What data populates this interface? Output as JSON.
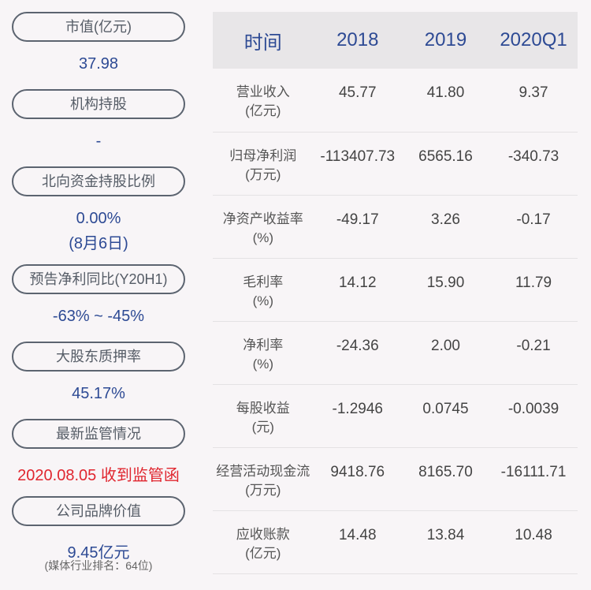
{
  "left": [
    {
      "label": "市值(亿元)",
      "value": "37.98"
    },
    {
      "label": "机构持股",
      "value": "-"
    },
    {
      "label": "北向资金持股比例",
      "value": "0.00%",
      "value2": "(8月6日)"
    },
    {
      "label": "预告净利同比(Y20H1)",
      "value": "-63% ~ -45%"
    },
    {
      "label": "大股东质押率",
      "value": "45.17%"
    },
    {
      "label": "最新监管情况",
      "value": "2020.08.05 收到监管函"
    },
    {
      "label": "公司品牌价值",
      "value": "9.45亿元",
      "note": "(媒体行业排名：64位)"
    }
  ],
  "table": {
    "headers": [
      "时间",
      "2018",
      "2019",
      "2020Q1"
    ],
    "rows": [
      {
        "label": "营业收入",
        "unit": "(亿元)",
        "values": [
          "45.77",
          "41.80",
          "9.37"
        ]
      },
      {
        "label": "归母净利润",
        "unit": "(万元)",
        "values": [
          "-113407.73",
          "6565.16",
          "-340.73"
        ]
      },
      {
        "label": "净资产收益率",
        "unit": "(%)",
        "values": [
          "-49.17",
          "3.26",
          "-0.17"
        ]
      },
      {
        "label": "毛利率",
        "unit": "(%)",
        "values": [
          "14.12",
          "15.90",
          "11.79"
        ]
      },
      {
        "label": "净利率",
        "unit": "(%)",
        "values": [
          "-24.36",
          "2.00",
          "-0.21"
        ]
      },
      {
        "label": "每股收益",
        "unit": "(元)",
        "values": [
          "-1.2946",
          "0.0745",
          "-0.0039"
        ]
      },
      {
        "label": "经营活动现金流",
        "unit": "(万元)",
        "values": [
          "9418.76",
          "8165.70",
          "-16111.71"
        ]
      },
      {
        "label": "应收账款",
        "unit": "(亿元)",
        "values": [
          "14.48",
          "13.84",
          "10.48"
        ]
      }
    ]
  },
  "colors": {
    "value": "#2d4a94",
    "alert": "#e0262f",
    "background": "#f8f5f7"
  }
}
